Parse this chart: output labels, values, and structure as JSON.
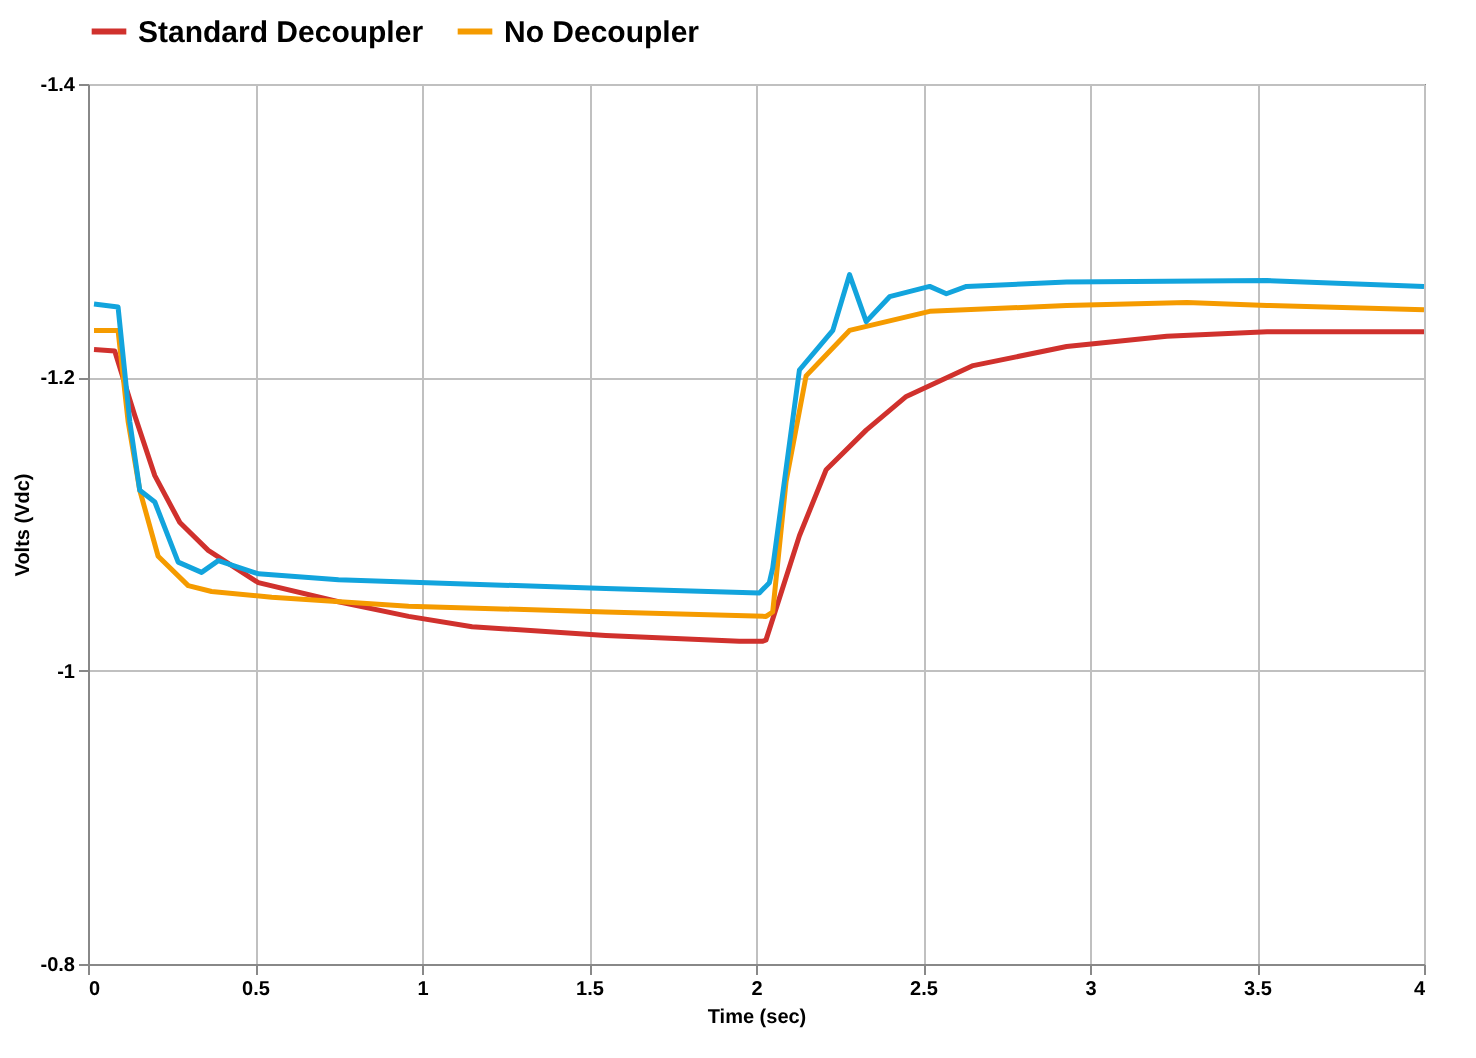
{
  "chart_data": {
    "type": "line",
    "xlabel": "Time (sec)",
    "ylabel": "Volts (Vdc)",
    "xlim": [
      0,
      4
    ],
    "xticks": [
      0,
      0.5,
      1,
      1.5,
      2,
      2.5,
      3,
      3.5,
      4
    ],
    "ylim": [
      -0.8,
      -1.4
    ],
    "yticks": [
      -1.4,
      -1.2,
      -1,
      -0.8
    ],
    "grid": true,
    "legend": "top left",
    "marker": "none",
    "line_style": "solid",
    "series": [
      {
        "name": "Standard Decoupler",
        "color": "#d0312d",
        "x": [
          0.018,
          0.08,
          0.14,
          0.2,
          0.275,
          0.36,
          0.51,
          0.75,
          0.96,
          1.15,
          1.55,
          1.95,
          2.02,
          2.03,
          2.13,
          2.21,
          2.33,
          2.45,
          2.65,
          2.93,
          3.23,
          3.53,
          4.0
        ],
        "values": [
          -1.219,
          -1.218,
          -1.174,
          -1.133,
          -1.101,
          -1.082,
          -1.06,
          -1.047,
          -1.037,
          -1.03,
          -1.024,
          -1.02,
          -1.02,
          -1.021,
          -1.092,
          -1.137,
          -1.164,
          -1.187,
          -1.208,
          -1.221,
          -1.228,
          -1.231,
          -1.231
        ]
      },
      {
        "name": "No Decoupler",
        "color": "#f59b00",
        "x": [
          0.018,
          0.09,
          0.12,
          0.155,
          0.21,
          0.3,
          0.37,
          0.55,
          0.96,
          1.55,
          2.03,
          2.05,
          2.09,
          2.15,
          2.28,
          2.52,
          2.93,
          3.29,
          3.53,
          4.0
        ],
        "values": [
          -1.232,
          -1.232,
          -1.17,
          -1.123,
          -1.078,
          -1.058,
          -1.054,
          -1.05,
          -1.044,
          -1.04,
          -1.037,
          -1.04,
          -1.129,
          -1.201,
          -1.232,
          -1.245,
          -1.249,
          -1.251,
          -1.249,
          -1.246
        ]
      },
      {
        "color": "#12a4dd",
        "x": [
          0.018,
          0.09,
          0.125,
          0.155,
          0.2,
          0.27,
          0.34,
          0.39,
          0.51,
          0.75,
          1.15,
          1.55,
          2.01,
          2.04,
          2.05,
          2.13,
          2.23,
          2.28,
          2.33,
          2.4,
          2.52,
          2.57,
          2.63,
          2.93,
          3.53,
          4.0
        ],
        "values": [
          -1.25,
          -1.248,
          -1.17,
          -1.123,
          -1.115,
          -1.074,
          -1.067,
          -1.075,
          -1.066,
          -1.062,
          -1.059,
          -1.056,
          -1.053,
          -1.06,
          -1.07,
          -1.205,
          -1.232,
          -1.27,
          -1.238,
          -1.255,
          -1.262,
          -1.257,
          -1.262,
          -1.265,
          -1.266,
          -1.262
        ]
      }
    ]
  }
}
